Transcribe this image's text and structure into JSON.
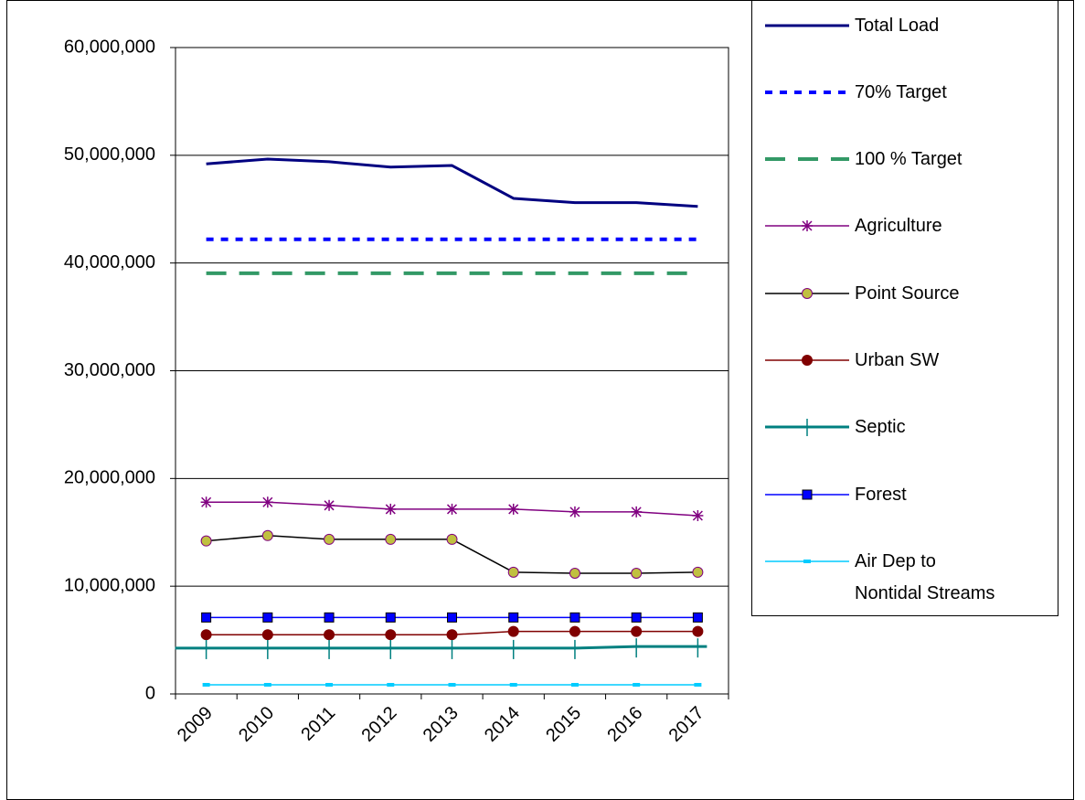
{
  "chart_data": {
    "type": "line",
    "categories": [
      "2009",
      "2010",
      "2011",
      "2012",
      "2013",
      "2014",
      "2015",
      "2016",
      "2017"
    ],
    "ylim": [
      0,
      60000000
    ],
    "yticks": [
      0,
      {
        "value": 10000000,
        "label": "10,000,000"
      },
      {
        "value": 20000000,
        "label": "20,000,000"
      },
      {
        "value": 30000000,
        "label": "30,000,000"
      },
      {
        "value": 40000000,
        "label": "40,000,000"
      },
      {
        "value": 50000000,
        "label": "50,000,000"
      },
      {
        "value": 60000000,
        "label": "60,000,000"
      }
    ],
    "grid": true,
    "legend": "right",
    "series": [
      {
        "name": "Total Load",
        "color": "#000080",
        "width": 3,
        "dash": "solid",
        "marker": "none",
        "values": [
          49200000,
          49650000,
          49400000,
          48900000,
          49050000,
          46000000,
          45600000,
          45600000,
          45250000
        ]
      },
      {
        "name": "70% Target",
        "color": "#0000ff",
        "width": 4,
        "dash": "dotted",
        "marker": "none",
        "values": [
          42200000,
          42200000,
          42200000,
          42200000,
          42200000,
          42200000,
          42200000,
          42200000,
          42200000
        ]
      },
      {
        "name": "100 % Target",
        "color": "#339966",
        "width": 4,
        "dash": "dashed",
        "marker": "none",
        "values": [
          39050000,
          39050000,
          39050000,
          39050000,
          39050000,
          39050000,
          39050000,
          39050000,
          39050000
        ]
      },
      {
        "name": "Agriculture",
        "color": "#800080",
        "width": 1.5,
        "dash": "solid",
        "marker": "asterisk",
        "values": [
          17800000,
          17800000,
          17500000,
          17150000,
          17150000,
          17150000,
          16900000,
          16900000,
          16550000
        ]
      },
      {
        "name": "Point Source",
        "color": "#000000",
        "width": 1.5,
        "dash": "solid",
        "marker": "circle",
        "marker_fill": "#c0c040",
        "marker_stroke": "#800080",
        "values": [
          14200000,
          14700000,
          14350000,
          14350000,
          14350000,
          11300000,
          11200000,
          11200000,
          11300000
        ]
      },
      {
        "name": "Urban SW",
        "color": "#800000",
        "width": 1.5,
        "dash": "solid",
        "marker": "circle",
        "marker_fill": "#800000",
        "marker_stroke": "#800000",
        "values": [
          5500000,
          5500000,
          5500000,
          5500000,
          5500000,
          5800000,
          5800000,
          5800000,
          5800000
        ]
      },
      {
        "name": "Septic",
        "color": "#008080",
        "width": 3,
        "dash": "solid",
        "marker": "plus",
        "values": [
          4250000,
          4250000,
          4250000,
          4250000,
          4250000,
          4250000,
          4250000,
          4400000,
          4400000
        ]
      },
      {
        "name": "Forest",
        "color": "#0000ff",
        "width": 1.5,
        "dash": "solid",
        "marker": "square",
        "marker_fill": "#0000ff",
        "marker_stroke": "#000000",
        "values": [
          7100000,
          7100000,
          7100000,
          7100000,
          7100000,
          7100000,
          7100000,
          7100000,
          7100000
        ]
      },
      {
        "name": "Air Dep to Nontidal Streams",
        "color": "#00ccff",
        "width": 1.5,
        "dash": "solid",
        "marker": "dash",
        "values": [
          850000,
          850000,
          850000,
          850000,
          850000,
          850000,
          850000,
          850000,
          850000
        ]
      }
    ]
  }
}
